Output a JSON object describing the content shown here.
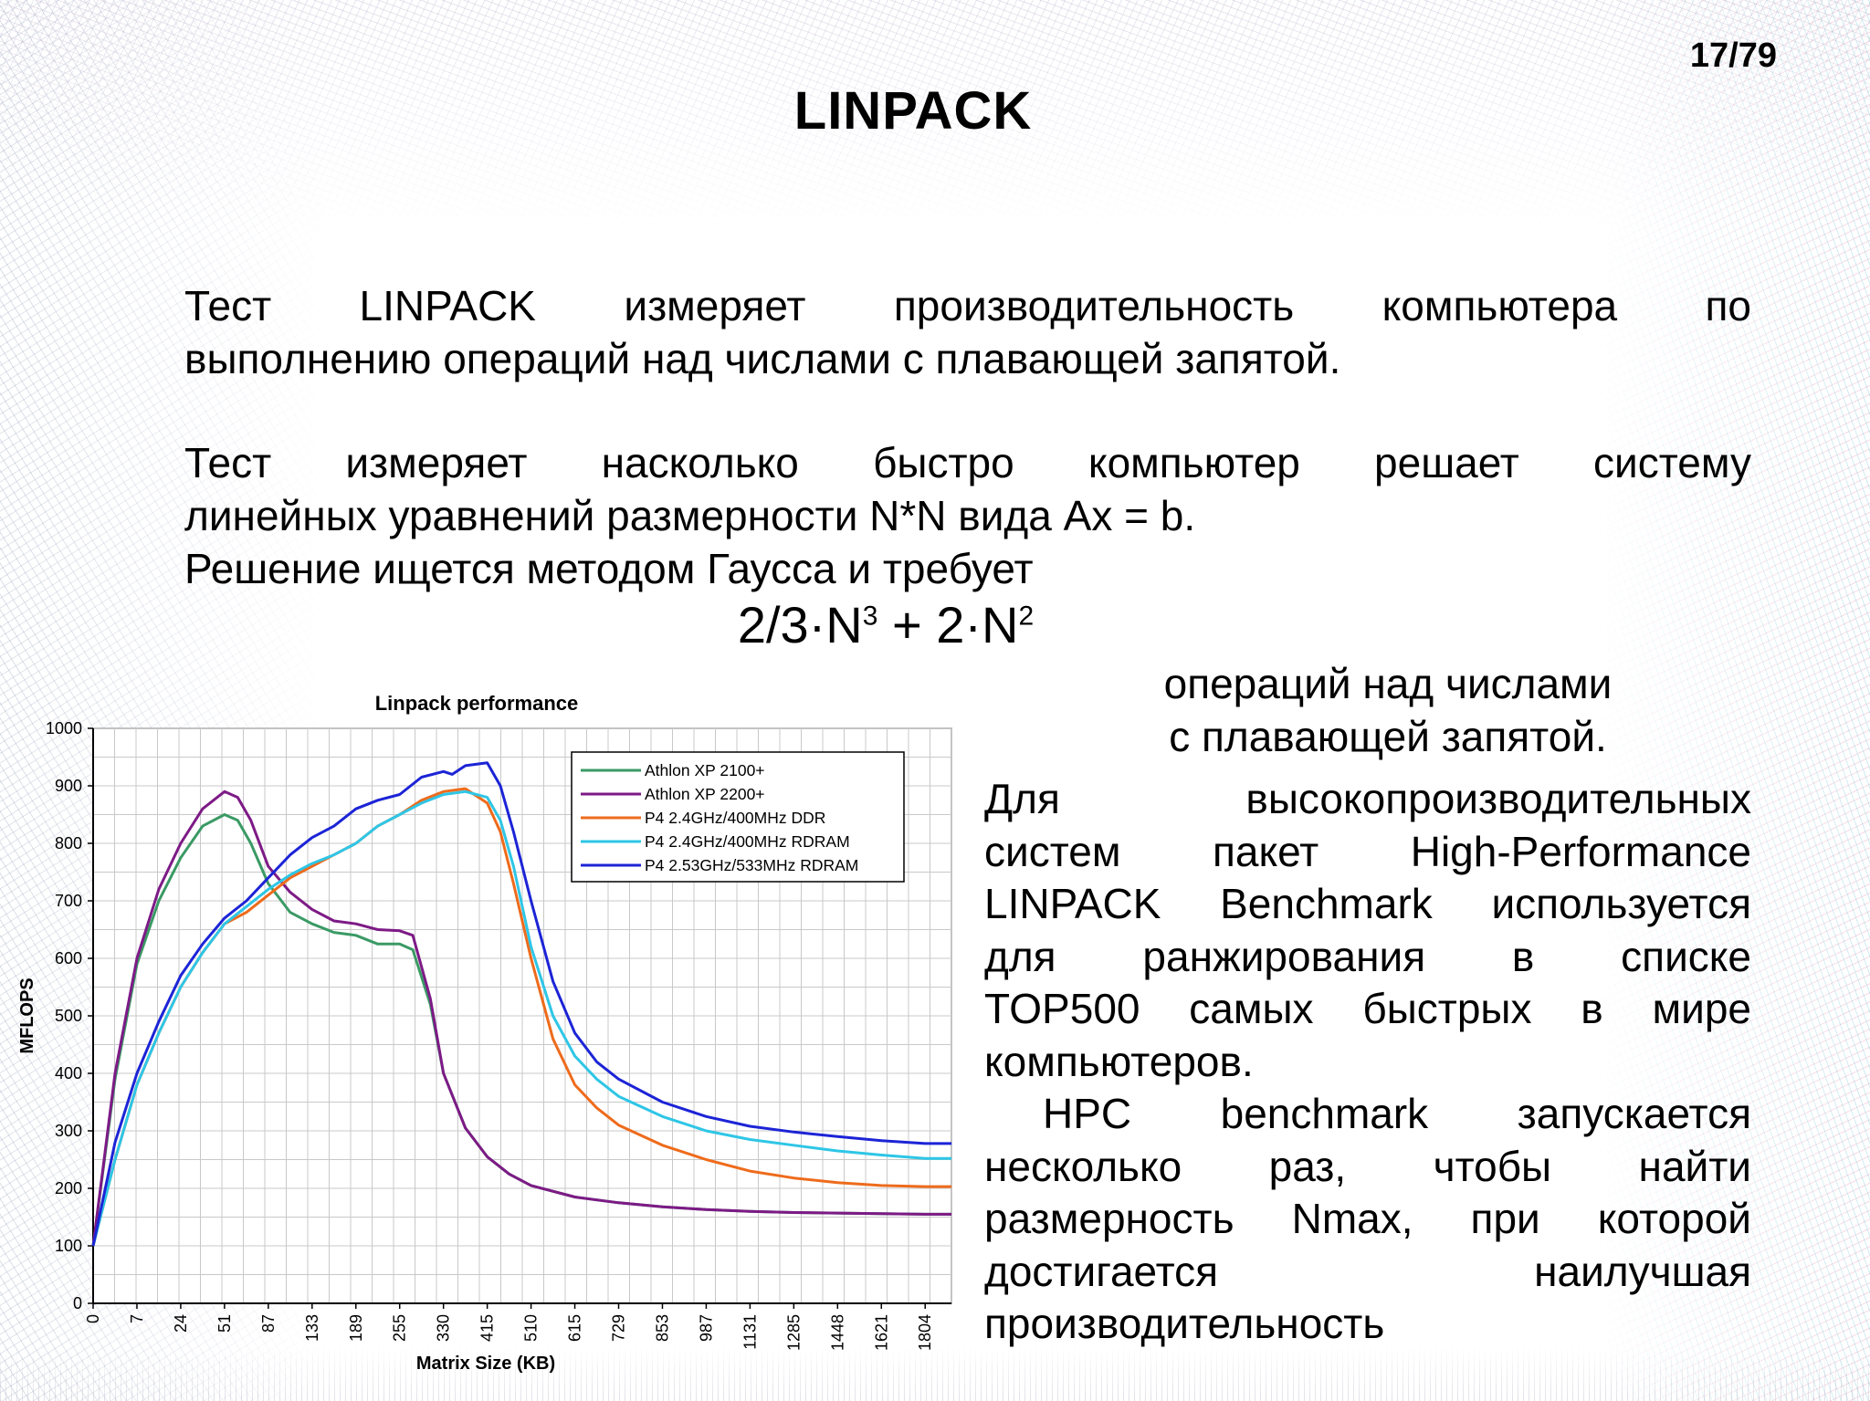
{
  "slide": {
    "page_number": "17/79",
    "title": "LINPACK",
    "para1": [
      "Тест LINPACK измеряет производительность компьютера по",
      "выполнению операций над числами с плавающей запятой."
    ],
    "para2_justified": "Тест измеряет насколько быстро компьютер решает систему",
    "para2_rest": [
      "линейных уравнений размерности N*N вида Ax = b.",
      "Решение ищется методом Гаусса и требует"
    ],
    "formula": {
      "part1": "2/3·N",
      "exp1": "3",
      "part2": " + 2·N",
      "exp2": "2"
    },
    "ops_lines": [
      "операций над числами",
      "с плавающей запятой."
    ],
    "right_col_justified": [
      "Для высокопроизводительных",
      "систем пакет High-Performance",
      "LINPACK Benchmark используется",
      "для ранжирования в списке",
      "TOP500 самых быстрых в мире"
    ],
    "right_col_plain": "компьютеров.",
    "right_col2_justified": [
      "HPC benchmark запускается",
      "несколько раз, чтобы найти",
      "размерность Nmax, при которой",
      "достигается наилучшая"
    ],
    "right_col2_plain": "производительность"
  },
  "chart_data": {
    "type": "line",
    "title": "Linpack performance",
    "xlabel": "Matrix Size (KB)",
    "ylabel": "MFLOPS",
    "ylim": [
      0,
      1000
    ],
    "yticks": [
      0,
      100,
      200,
      300,
      400,
      500,
      600,
      700,
      800,
      900,
      1000
    ],
    "x_categories": [
      "0",
      "7",
      "24",
      "51",
      "87",
      "133",
      "189",
      "255",
      "330",
      "415",
      "510",
      "615",
      "729",
      "853",
      "987",
      "1131",
      "1285",
      "1448",
      "1621",
      "1804"
    ],
    "grid": true,
    "legend_position": "top-right",
    "series": [
      {
        "name": "Athlon XP 2100+",
        "color": "#3a9a64",
        "values": [
          [
            0,
            100
          ],
          [
            0.5,
            390
          ],
          [
            1,
            590
          ],
          [
            1.5,
            700
          ],
          [
            2,
            775
          ],
          [
            2.5,
            830
          ],
          [
            3,
            850
          ],
          [
            3.3,
            840
          ],
          [
            3.6,
            800
          ],
          [
            4,
            730
          ],
          [
            4.5,
            680
          ],
          [
            5,
            660
          ],
          [
            5.5,
            645
          ],
          [
            6,
            640
          ],
          [
            6.5,
            625
          ],
          [
            7,
            625
          ],
          [
            7.3,
            615
          ],
          [
            7.7,
            520
          ],
          [
            8,
            400
          ],
          [
            8.5,
            305
          ],
          [
            9,
            255
          ],
          [
            9.5,
            225
          ],
          [
            10,
            205
          ],
          [
            11,
            185
          ],
          [
            12,
            175
          ],
          [
            13,
            168
          ],
          [
            14,
            163
          ],
          [
            15,
            160
          ],
          [
            16,
            158
          ],
          [
            17,
            157
          ],
          [
            18,
            156
          ],
          [
            19,
            155
          ],
          [
            19.6,
            155
          ]
        ]
      },
      {
        "name": "Athlon XP 2200+",
        "color": "#7d1a86",
        "values": [
          [
            0,
            100
          ],
          [
            0.5,
            400
          ],
          [
            1,
            600
          ],
          [
            1.5,
            720
          ],
          [
            2,
            800
          ],
          [
            2.5,
            860
          ],
          [
            3,
            890
          ],
          [
            3.3,
            880
          ],
          [
            3.6,
            840
          ],
          [
            4,
            760
          ],
          [
            4.5,
            715
          ],
          [
            5,
            685
          ],
          [
            5.5,
            665
          ],
          [
            6,
            660
          ],
          [
            6.5,
            650
          ],
          [
            7,
            648
          ],
          [
            7.3,
            640
          ],
          [
            7.7,
            530
          ],
          [
            8,
            400
          ],
          [
            8.5,
            305
          ],
          [
            9,
            255
          ],
          [
            9.5,
            225
          ],
          [
            10,
            205
          ],
          [
            11,
            185
          ],
          [
            12,
            175
          ],
          [
            13,
            168
          ],
          [
            14,
            163
          ],
          [
            15,
            160
          ],
          [
            16,
            158
          ],
          [
            17,
            157
          ],
          [
            18,
            156
          ],
          [
            19,
            155
          ],
          [
            19.6,
            155
          ]
        ]
      },
      {
        "name": "P4 2.4GHz/400MHz DDR",
        "color": "#ee6b1c",
        "values": [
          [
            0,
            100
          ],
          [
            0.5,
            250
          ],
          [
            1,
            380
          ],
          [
            1.5,
            470
          ],
          [
            2,
            550
          ],
          [
            2.5,
            610
          ],
          [
            3,
            660
          ],
          [
            3.5,
            680
          ],
          [
            4,
            710
          ],
          [
            4.5,
            740
          ],
          [
            5,
            760
          ],
          [
            5.5,
            780
          ],
          [
            6,
            800
          ],
          [
            6.5,
            830
          ],
          [
            7,
            850
          ],
          [
            7.5,
            875
          ],
          [
            8,
            890
          ],
          [
            8.5,
            895
          ],
          [
            9,
            870
          ],
          [
            9.3,
            820
          ],
          [
            9.6,
            730
          ],
          [
            10,
            600
          ],
          [
            10.5,
            460
          ],
          [
            11,
            380
          ],
          [
            11.5,
            340
          ],
          [
            12,
            310
          ],
          [
            13,
            275
          ],
          [
            14,
            250
          ],
          [
            15,
            230
          ],
          [
            16,
            218
          ],
          [
            17,
            210
          ],
          [
            18,
            205
          ],
          [
            19,
            203
          ],
          [
            19.6,
            203
          ]
        ]
      },
      {
        "name": "P4 2.4GHz/400MHz RDRAM",
        "color": "#2ec6e6",
        "values": [
          [
            0,
            100
          ],
          [
            0.5,
            250
          ],
          [
            1,
            380
          ],
          [
            1.5,
            470
          ],
          [
            2,
            550
          ],
          [
            2.5,
            610
          ],
          [
            3,
            660
          ],
          [
            3.5,
            690
          ],
          [
            4,
            720
          ],
          [
            4.5,
            745
          ],
          [
            5,
            765
          ],
          [
            5.5,
            780
          ],
          [
            6,
            800
          ],
          [
            6.5,
            830
          ],
          [
            7,
            850
          ],
          [
            7.5,
            870
          ],
          [
            8,
            885
          ],
          [
            8.5,
            890
          ],
          [
            9,
            880
          ],
          [
            9.3,
            840
          ],
          [
            9.6,
            760
          ],
          [
            10,
            620
          ],
          [
            10.5,
            500
          ],
          [
            11,
            430
          ],
          [
            11.5,
            390
          ],
          [
            12,
            360
          ],
          [
            13,
            325
          ],
          [
            14,
            300
          ],
          [
            15,
            285
          ],
          [
            16,
            275
          ],
          [
            17,
            265
          ],
          [
            18,
            258
          ],
          [
            19,
            252
          ],
          [
            19.6,
            252
          ]
        ]
      },
      {
        "name": "P4 2.53GHz/533MHz RDRAM",
        "color": "#1c24d6",
        "values": [
          [
            0,
            100
          ],
          [
            0.5,
            280
          ],
          [
            1,
            400
          ],
          [
            1.5,
            490
          ],
          [
            2,
            570
          ],
          [
            2.5,
            625
          ],
          [
            3,
            670
          ],
          [
            3.5,
            700
          ],
          [
            4,
            740
          ],
          [
            4.5,
            780
          ],
          [
            5,
            810
          ],
          [
            5.5,
            830
          ],
          [
            6,
            860
          ],
          [
            6.5,
            875
          ],
          [
            7,
            885
          ],
          [
            7.5,
            915
          ],
          [
            8,
            925
          ],
          [
            8.2,
            920
          ],
          [
            8.5,
            935
          ],
          [
            9,
            940
          ],
          [
            9.3,
            900
          ],
          [
            9.6,
            820
          ],
          [
            10,
            700
          ],
          [
            10.5,
            560
          ],
          [
            11,
            470
          ],
          [
            11.5,
            420
          ],
          [
            12,
            390
          ],
          [
            13,
            350
          ],
          [
            14,
            325
          ],
          [
            15,
            308
          ],
          [
            16,
            298
          ],
          [
            17,
            290
          ],
          [
            18,
            283
          ],
          [
            19,
            278
          ],
          [
            19.6,
            278
          ]
        ]
      }
    ]
  }
}
